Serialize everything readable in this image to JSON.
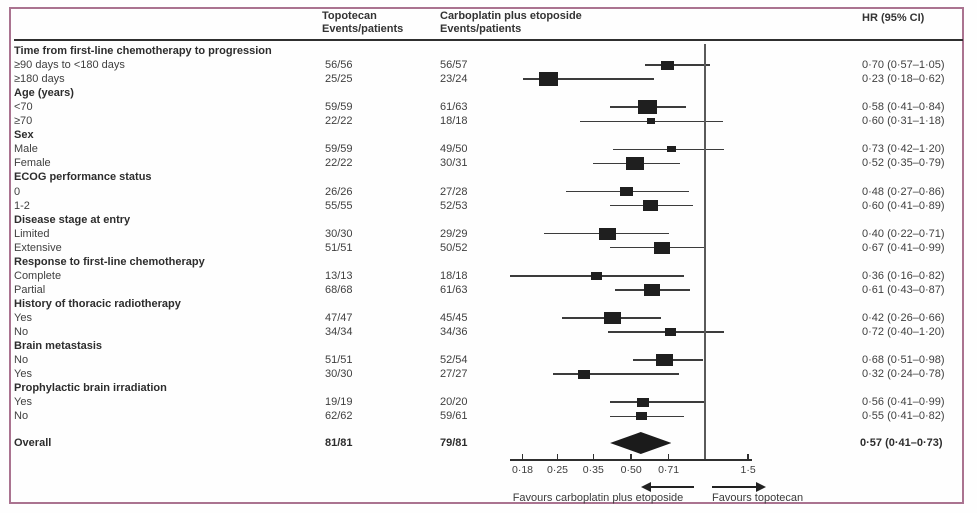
{
  "header": {
    "col_topotecan_title": "Topotecan",
    "col_topotecan_sub": "Events/patients",
    "col_carboplatin_title": "Carboplatin plus etoposide",
    "col_carboplatin_sub": "Events/patients",
    "col_hr": "HR (95% CI)"
  },
  "colors": {
    "frame_border": "#aa7390",
    "marker": "#1f1f1f",
    "text": "#3f3f3f"
  },
  "chart_data": {
    "type": "forest",
    "x_scale": "log",
    "ref_value": 1.0,
    "xlim": [
      0.155,
      1.7
    ],
    "axis_ticks": [
      {
        "value": 0.18,
        "label": "0·18"
      },
      {
        "value": 0.25,
        "label": "0·25"
      },
      {
        "value": 0.35,
        "label": "0·35"
      },
      {
        "value": 0.5,
        "label": "0·50"
      },
      {
        "value": 0.71,
        "label": "0·71"
      },
      {
        "value": 1.5,
        "label": "1·5"
      }
    ],
    "footer": {
      "favours_left": "Favours carboplatin plus etoposide",
      "favours_right": "Favours topotecan"
    },
    "groups": [
      {
        "label": "Time from first-line chemotherapy to progression",
        "rows": [
          {
            "label": "≥90 days to <180 days",
            "topotecan": "56/56",
            "carboplatin": "56/57",
            "hr": 0.7,
            "low": 0.57,
            "high": 1.05,
            "hr_text": "0·70 (0·57–1·05)",
            "marker_size": 13
          },
          {
            "label": "≥180 days",
            "topotecan": "25/25",
            "carboplatin": "23/24",
            "hr": 0.23,
            "low": 0.18,
            "high": 0.62,
            "hr_text": "0·23 (0·18–0·62)",
            "marker_size": 19
          }
        ]
      },
      {
        "label": "Age (years)",
        "rows": [
          {
            "label": "<70",
            "topotecan": "59/59",
            "carboplatin": "61/63",
            "hr": 0.58,
            "low": 0.41,
            "high": 0.84,
            "hr_text": "0·58 (0·41–0·84)",
            "marker_size": 19
          },
          {
            "label": "≥70",
            "topotecan": "22/22",
            "carboplatin": "18/18",
            "hr": 0.6,
            "low": 0.31,
            "high": 1.18,
            "hr_text": "0·60 (0·31–1·18)",
            "marker_size": 8
          }
        ]
      },
      {
        "label": "Sex",
        "rows": [
          {
            "label": "Male",
            "topotecan": "59/59",
            "carboplatin": "49/50",
            "hr": 0.73,
            "low": 0.42,
            "high": 1.2,
            "hr_text": "0·73 (0·42–1·20)",
            "marker_size": 9
          },
          {
            "label": "Female",
            "topotecan": "22/22",
            "carboplatin": "30/31",
            "hr": 0.52,
            "low": 0.35,
            "high": 0.79,
            "hr_text": "0·52 (0·35–0·79)",
            "marker_size": 18
          }
        ]
      },
      {
        "label": "ECOG performance status",
        "rows": [
          {
            "label": "0",
            "topotecan": "26/26",
            "carboplatin": "27/28",
            "hr": 0.48,
            "low": 0.27,
            "high": 0.86,
            "hr_text": "0·48 (0·27–0·86)",
            "marker_size": 13
          },
          {
            "label": "1-2",
            "topotecan": "55/55",
            "carboplatin": "52/53",
            "hr": 0.6,
            "low": 0.41,
            "high": 0.89,
            "hr_text": "0·60 (0·41–0·89)",
            "marker_size": 15
          }
        ]
      },
      {
        "label": "Disease stage at entry",
        "rows": [
          {
            "label": "Limited",
            "topotecan": "30/30",
            "carboplatin": "29/29",
            "hr": 0.4,
            "low": 0.22,
            "high": 0.71,
            "hr_text": "0·40 (0·22–0·71)",
            "marker_size": 17
          },
          {
            "label": "Extensive",
            "topotecan": "51/51",
            "carboplatin": "50/52",
            "hr": 0.67,
            "low": 0.41,
            "high": 0.99,
            "hr_text": "0·67 (0·41–0·99)",
            "marker_size": 16
          }
        ]
      },
      {
        "label": "Response to first-line chemotherapy",
        "rows": [
          {
            "label": "Complete",
            "topotecan": "13/13",
            "carboplatin": "18/18",
            "hr": 0.36,
            "low": 0.16,
            "high": 0.82,
            "hr_text": "0·36 (0·16–0·82)",
            "marker_size": 11
          },
          {
            "label": "Partial",
            "topotecan": "68/68",
            "carboplatin": "61/63",
            "hr": 0.61,
            "low": 0.43,
            "high": 0.87,
            "hr_text": "0·61 (0·43–0·87)",
            "marker_size": 16
          }
        ]
      },
      {
        "label": "History of thoracic radiotherapy",
        "rows": [
          {
            "label": "Yes",
            "topotecan": "47/47",
            "carboplatin": "45/45",
            "hr": 0.42,
            "low": 0.26,
            "high": 0.66,
            "hr_text": "0·42 (0·26–0·66)",
            "marker_size": 17
          },
          {
            "label": "No",
            "topotecan": "34/34",
            "carboplatin": "34/36",
            "hr": 0.72,
            "low": 0.4,
            "high": 1.2,
            "hr_text": "0·72 (0·40–1·20)",
            "marker_size": 11
          }
        ]
      },
      {
        "label": "Brain metastasis",
        "rows": [
          {
            "label": "No",
            "topotecan": "51/51",
            "carboplatin": "52/54",
            "hr": 0.68,
            "low": 0.51,
            "high": 0.98,
            "hr_text": "0·68 (0·51–0·98)",
            "marker_size": 17
          },
          {
            "label": "Yes",
            "topotecan": "30/30",
            "carboplatin": "27/27",
            "hr": 0.32,
            "low": 0.24,
            "high": 0.78,
            "hr_text": "0·32 (0·24–0·78)",
            "marker_size": 12
          }
        ]
      },
      {
        "label": "Prophylactic brain irradiation",
        "rows": [
          {
            "label": "Yes",
            "topotecan": "19/19",
            "carboplatin": "20/20",
            "hr": 0.56,
            "low": 0.41,
            "high": 0.99,
            "hr_text": "0·56 (0·41–0·99)",
            "marker_size": 12
          },
          {
            "label": "No",
            "topotecan": "62/62",
            "carboplatin": "59/61",
            "hr": 0.55,
            "low": 0.41,
            "high": 0.82,
            "hr_text": "0·55 (0·41–0·82)",
            "marker_size": 11
          }
        ]
      }
    ],
    "overall": {
      "label": "Overall",
      "topotecan": "81/81",
      "carboplatin": "79/81",
      "hr": 0.57,
      "low": 0.41,
      "high": 0.73,
      "hr_text": "0·57 (0·41–0·73)"
    }
  }
}
